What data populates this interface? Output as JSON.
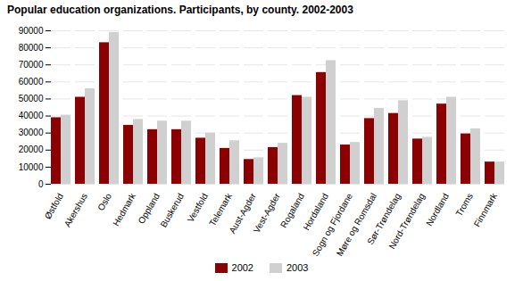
{
  "chart_data": {
    "type": "bar",
    "title": "Popular education organizations. Participants, by county. 2002-2003",
    "categories": [
      "Østfold",
      "Akershus",
      "Oslo",
      "Hedmark",
      "Oppland",
      "Buskerud",
      "Vestfold",
      "Telemark",
      "Aust-Agder",
      "Vest-Agder",
      "Rogaland",
      "Hordaland",
      "Sogn og Fjordane",
      "Møre og Romsdal",
      "Sør-Trøndelag",
      "Nord-Trøndelag",
      "Nordland",
      "Troms",
      "Finnmark"
    ],
    "series": [
      {
        "name": "2002",
        "color": "#8B0000",
        "values": [
          39000,
          51000,
          83000,
          34500,
          32000,
          32000,
          27000,
          21000,
          14500,
          21500,
          52000,
          65500,
          23000,
          38500,
          41500,
          26500,
          47000,
          29500,
          13000
        ]
      },
      {
        "name": "2003",
        "color": "#D0D0D0",
        "values": [
          40500,
          56000,
          89000,
          38000,
          37000,
          37000,
          30000,
          25500,
          15500,
          24000,
          51000,
          72500,
          24500,
          44500,
          49000,
          27500,
          51000,
          32500,
          13000
        ]
      }
    ],
    "ylim": [
      0,
      90000
    ],
    "yticks": [
      0,
      10000,
      20000,
      30000,
      40000,
      50000,
      60000,
      70000,
      80000,
      90000
    ],
    "grid": true,
    "legend": "bottom"
  }
}
